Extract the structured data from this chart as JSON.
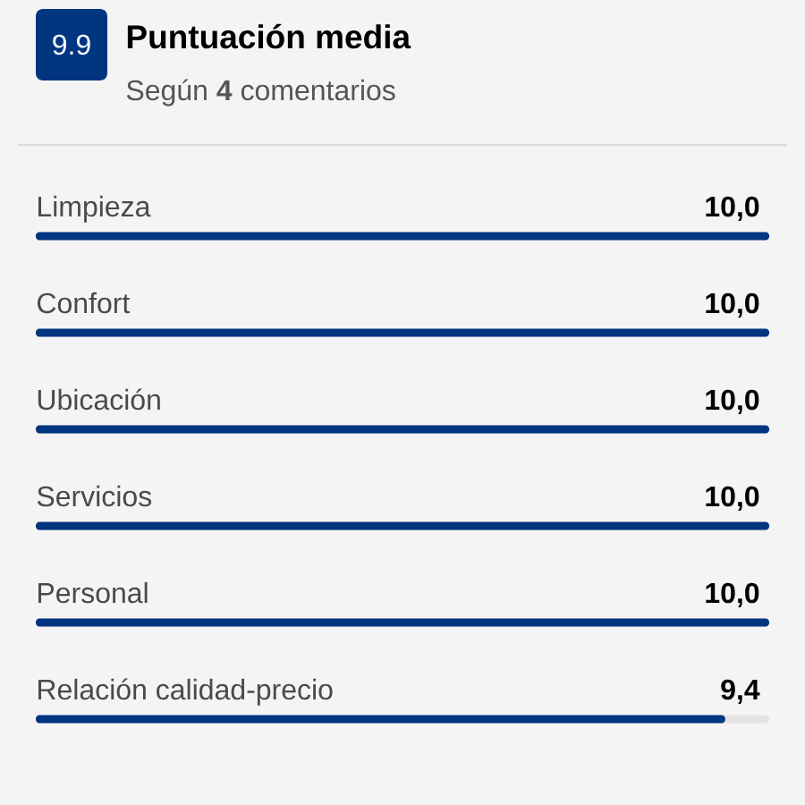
{
  "chart_data": {
    "type": "bar",
    "orientation": "horizontal",
    "title": "Puntuación media",
    "subtitle": "Según **4** comentarios",
    "annotations": [
      "9.9"
    ],
    "categories": [
      "Limpieza",
      "Confort",
      "Ubicación",
      "Servicios",
      "Personal",
      "Relación calidad-precio"
    ],
    "values": [
      10,
      10,
      10,
      10,
      10,
      9.4
    ],
    "value_labels": [
      "10,0",
      "10,0",
      "10,0",
      "10,0",
      "10,0",
      "9,4"
    ],
    "color": "#003580",
    "xlim": [
      0,
      10
    ],
    "tick_labels": "y"
  }
}
